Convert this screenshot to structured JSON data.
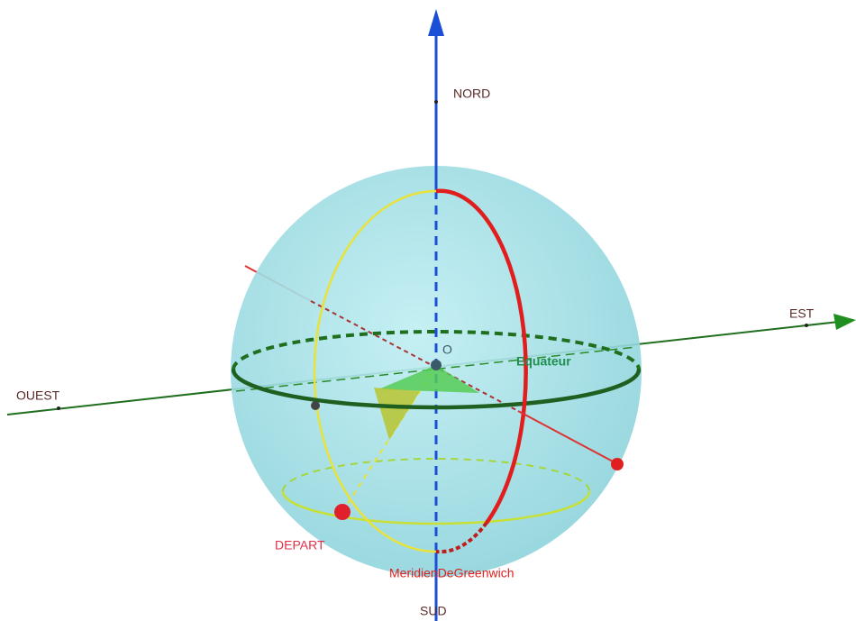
{
  "labels": {
    "north": "NORD",
    "south": "SUD",
    "east": "EST",
    "west": "OUEST",
    "origin": "O",
    "equator": "Equateur",
    "start": "DEPART",
    "meridian": "MeridienDeGreenwich"
  }
}
